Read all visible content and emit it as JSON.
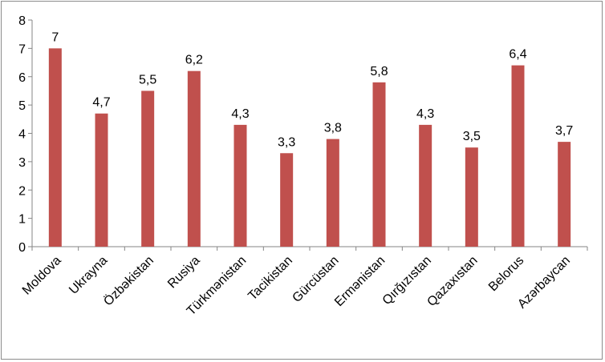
{
  "chart_data": {
    "type": "bar",
    "categories": [
      "Moldova",
      "Ukrayna",
      "Özbəkistan",
      "Rusiya",
      "Türkmənistan",
      "Tacikistan",
      "Gürcüstan",
      "Ermənistan",
      "Qırğızıstan",
      "Qazaxıstan",
      "Belorus",
      "Azərbaycan"
    ],
    "values": [
      7,
      4.7,
      5.5,
      6.2,
      4.3,
      3.3,
      3.8,
      5.8,
      4.3,
      3.5,
      6.4,
      3.7
    ],
    "data_labels": [
      "7",
      "4,7",
      "5,5",
      "6,2",
      "4,3",
      "3,3",
      "3,8",
      "5,8",
      "4,3",
      "3,5",
      "6,4",
      "3,7"
    ],
    "yticks": [
      "0",
      "1",
      "2",
      "3",
      "4",
      "5",
      "6",
      "7",
      "8"
    ],
    "ylim": [
      0,
      8
    ],
    "bar_color": "#c0504d",
    "grid": false,
    "legend": "none"
  }
}
